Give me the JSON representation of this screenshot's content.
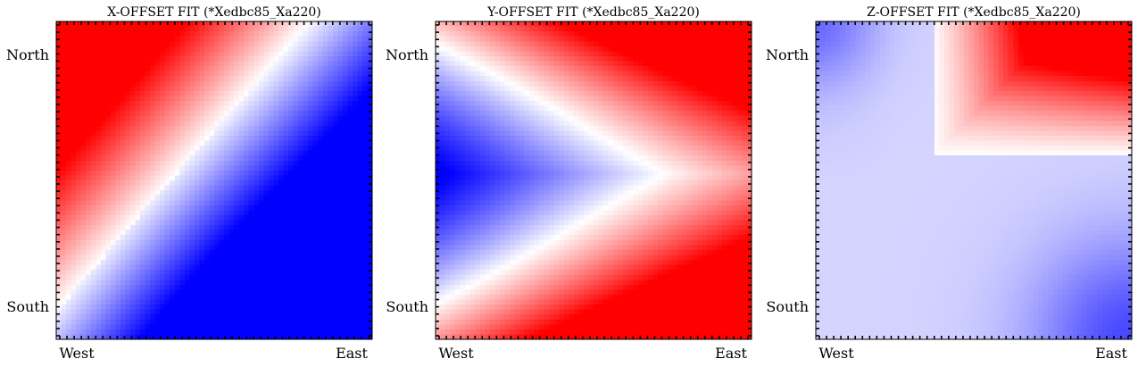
{
  "chart_data": [
    {
      "type": "heatmap",
      "title": "X-OFFSET FIT (*Xedbc85_Xa220)",
      "xticks": [
        "West",
        "East"
      ],
      "yticks": [
        "North",
        "South"
      ],
      "colormap": {
        "low": "#0000ff",
        "mid": "#ffffff",
        "high": "#ff0000"
      },
      "field": {
        "kind": "diagonal"
      },
      "colorbar": false,
      "grid": false
    },
    {
      "type": "heatmap",
      "title": "Y-OFFSET FIT (*Xedbc85_Xa220)",
      "xticks": [
        "West",
        "East"
      ],
      "yticks": [
        "North",
        "South"
      ],
      "colormap": {
        "low": "#0000ff",
        "mid": "#ffffff",
        "high": "#ff0000"
      },
      "field": {
        "kind": "wedge"
      },
      "colorbar": false,
      "grid": false
    },
    {
      "type": "heatmap",
      "title": "Z-OFFSET FIT (*Xedbc85_Xa220)",
      "xticks": [
        "West",
        "East"
      ],
      "yticks": [
        "North",
        "South"
      ],
      "colormap": {
        "low": "#0000ff",
        "mid": "#ffffff",
        "high": "#ff0000"
      },
      "field": {
        "kind": "corner"
      },
      "colorbar": false,
      "grid": false
    }
  ]
}
